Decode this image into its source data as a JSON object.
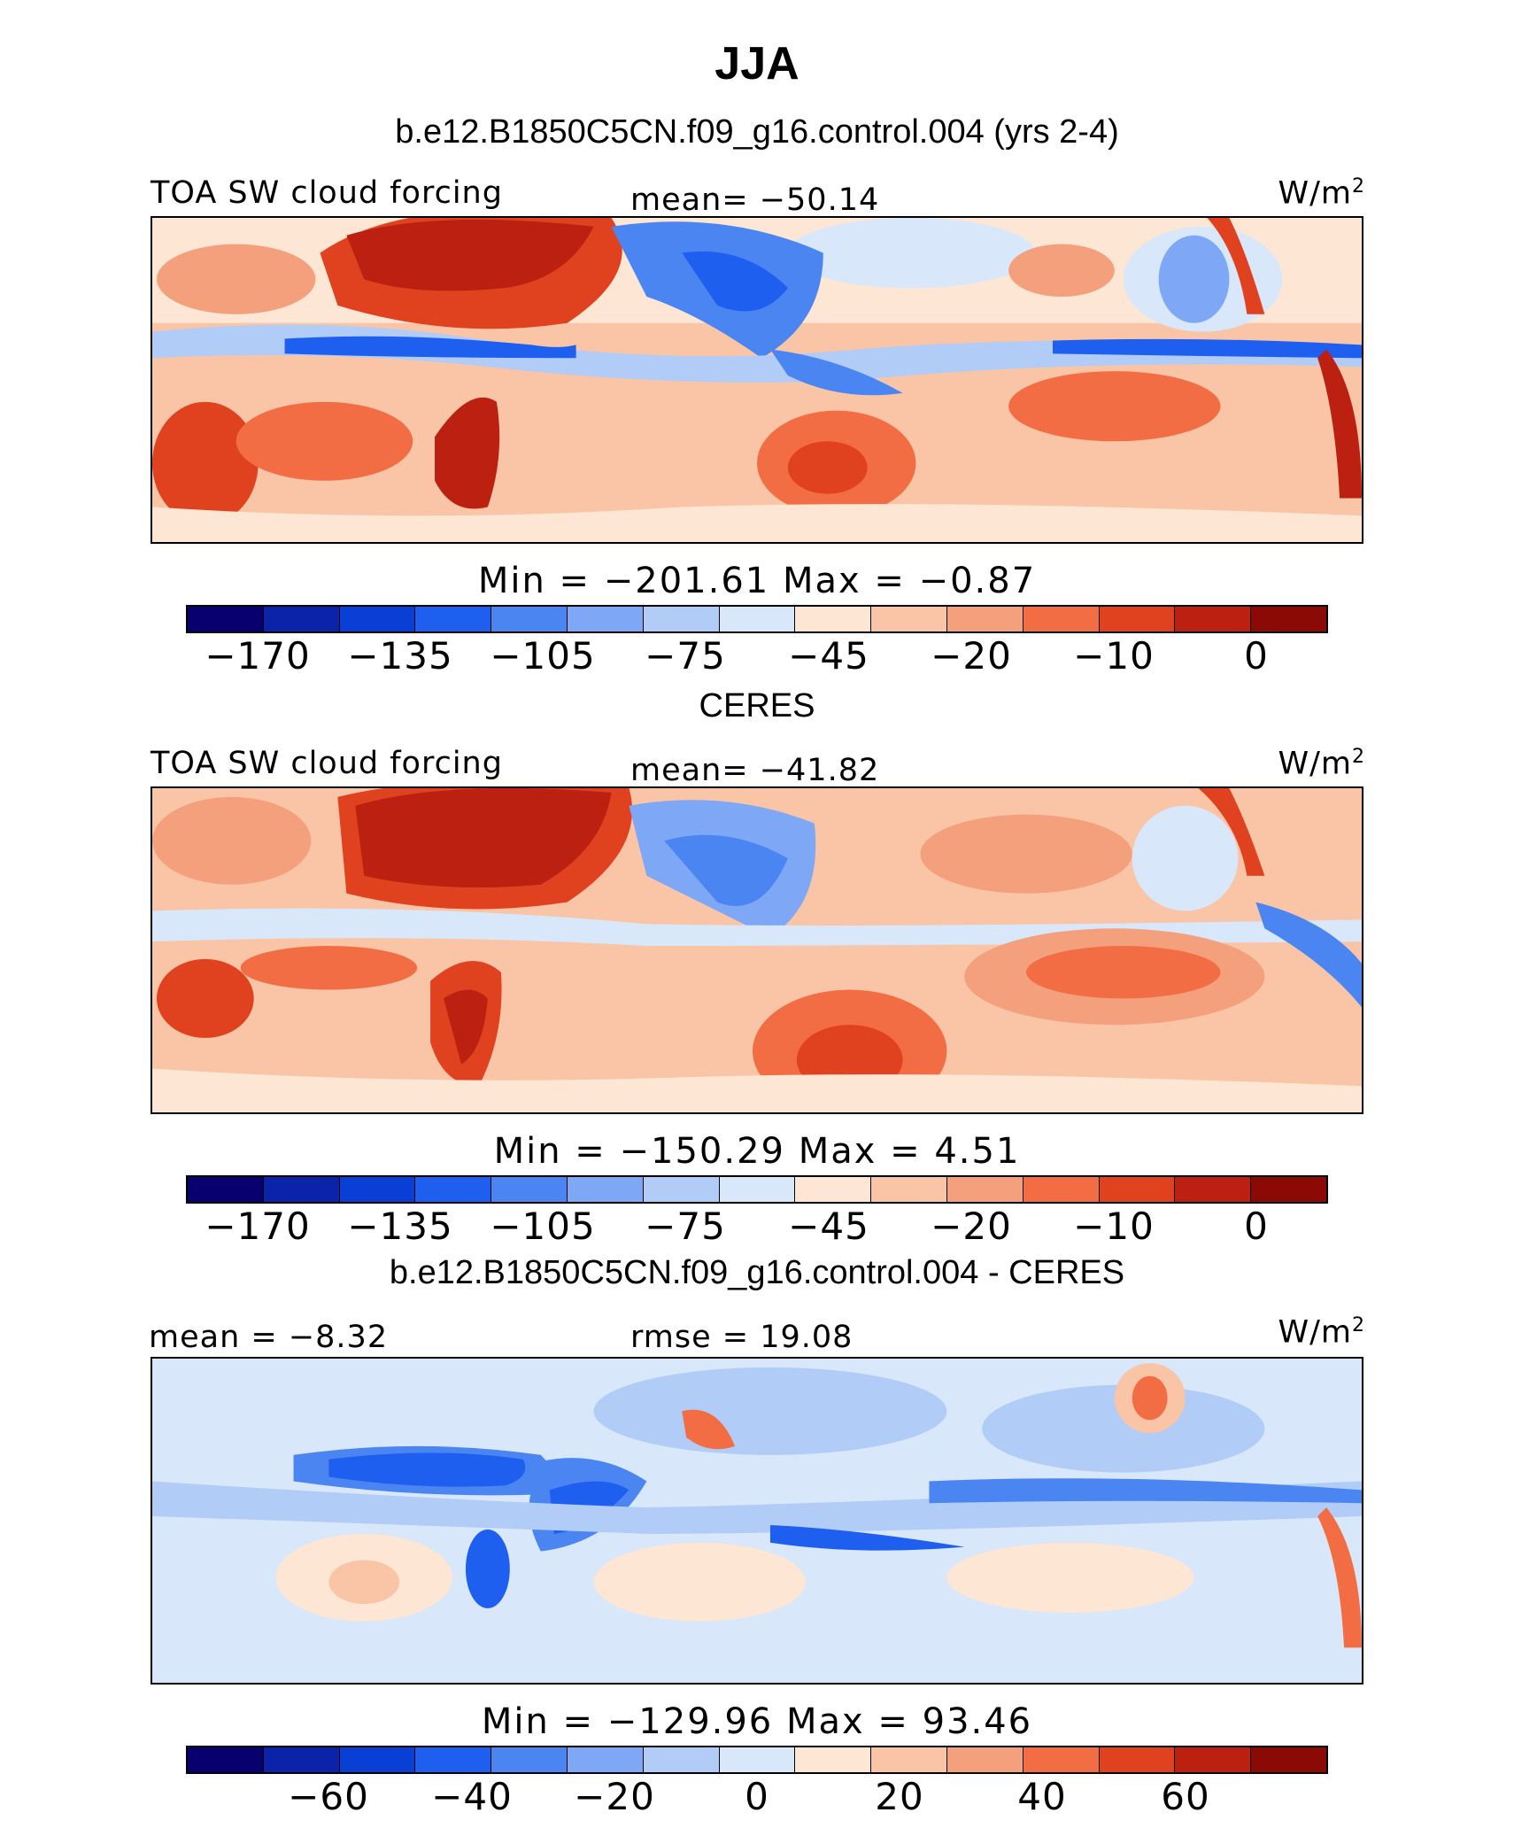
{
  "season": "JJA",
  "colors": {
    "abs_scale": [
      "#08006e",
      "#0a23a8",
      "#0a3fd6",
      "#1f5ff0",
      "#4a85f2",
      "#7ea8f5",
      "#b0ccf7",
      "#d8e7fa",
      "#fde6d4",
      "#f9c5a6",
      "#f5a07d",
      "#f26d43",
      "#e0411f",
      "#bb2010",
      "#8b0a06"
    ],
    "diff_scale": [
      "#08006e",
      "#0a23a8",
      "#0a3fd6",
      "#1f5ff0",
      "#4a85f2",
      "#7ea8f5",
      "#b0ccf7",
      "#d8e7fa",
      "#fde6d4",
      "#f9c5a6",
      "#f5a07d",
      "#f26d43",
      "#e0411f",
      "#bb2010",
      "#8b0a06"
    ]
  },
  "panels": [
    {
      "subtitle": "b.e12.B1850C5CN.f09_g16.control.004 (yrs 2-4)",
      "left_label": "TOA SW cloud forcing",
      "center_label": "mean=  −50.14",
      "units": "W/m",
      "units_exp": "2",
      "minmax": "Min  =  −201.61  Max  =    −0.87",
      "colorbar_ticks": [
        "−170",
        "−135",
        "−105",
        "−75",
        "−45",
        "−20",
        "−10",
        "0"
      ]
    },
    {
      "subtitle": "CERES",
      "left_label": "TOA SW cloud forcing",
      "center_label": "mean=  −41.82",
      "units": "W/m",
      "units_exp": "2",
      "minmax": "Min  =  −150.29  Max  =     4.51",
      "colorbar_ticks": [
        "−170",
        "−135",
        "−105",
        "−75",
        "−45",
        "−20",
        "−10",
        "0"
      ]
    },
    {
      "subtitle": "b.e12.B1850C5CN.f09_g16.control.004 - CERES",
      "left_label": "mean  =   −8.32",
      "center_label": "rmse  =   19.08",
      "units": "W/m",
      "units_exp": "2",
      "minmax": "Min  =  −129.96  Max  =   93.46",
      "colorbar_ticks": [
        "−60",
        "−40",
        "−20",
        "0",
        "20",
        "40",
        "60"
      ]
    }
  ]
}
